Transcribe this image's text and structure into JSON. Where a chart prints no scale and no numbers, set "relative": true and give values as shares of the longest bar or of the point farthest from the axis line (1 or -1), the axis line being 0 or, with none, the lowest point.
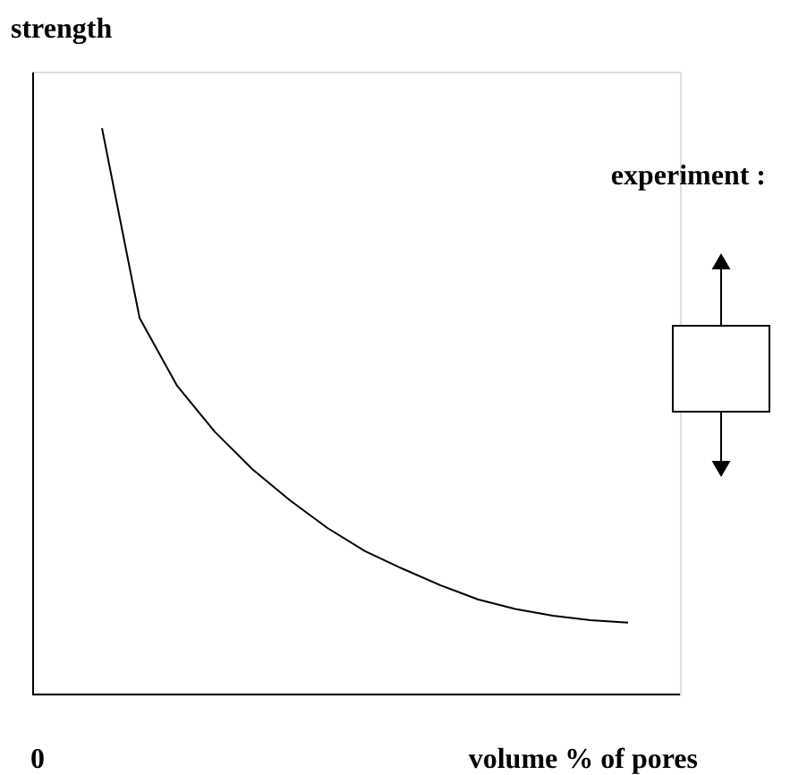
{
  "chart_data": {
    "type": "line",
    "relative": true,
    "xlabel": "volume % of pores",
    "ylabel": "strength",
    "categories": [
      null,
      null,
      null,
      null,
      null,
      null,
      null,
      null,
      null,
      null,
      null,
      null,
      null,
      null,
      null
    ],
    "series": [
      {
        "color": "#000000",
        "values": [
          1.0,
          0.665,
          0.545,
          0.464,
          0.398,
          0.343,
          0.294,
          0.253,
          0.222,
          0.193,
          0.168,
          0.151,
          0.139,
          0.131,
          0.127
        ]
      }
    ],
    "annotations": [
      "experiment :",
      "0"
    ],
    "grid": false,
    "marker": "none",
    "line_style": "solid"
  }
}
